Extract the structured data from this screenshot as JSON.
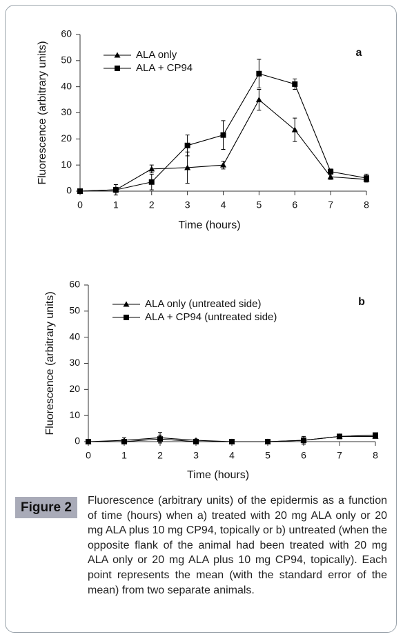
{
  "chart_data": [
    {
      "type": "line",
      "panel": "a",
      "x": [
        0,
        1,
        2,
        3,
        4,
        5,
        6,
        7,
        8
      ],
      "xlim": [
        0,
        8
      ],
      "xticks": [
        0,
        1,
        2,
        3,
        4,
        5,
        6,
        7,
        8
      ],
      "ylim": [
        0,
        60
      ],
      "yticks": [
        0,
        10,
        20,
        30,
        40,
        50,
        60
      ],
      "xlabel": "Time (hours)",
      "ylabel": "Fluorescence (arbitrary units)",
      "series": [
        {
          "name": "ALA only",
          "color": "#000000",
          "marker": "triangle",
          "values": [
            0,
            0.5,
            8.5,
            9,
            10,
            35,
            23.5,
            5.5,
            4.5
          ],
          "errors": [
            0,
            2,
            1.5,
            6,
            1.5,
            4,
            4.5,
            1,
            1
          ]
        },
        {
          "name": "ALA + CP94",
          "color": "#000000",
          "marker": "square",
          "values": [
            0,
            0.5,
            3.5,
            17.5,
            21.5,
            45,
            41,
            7.5,
            5
          ],
          "errors": [
            0,
            1,
            3,
            4,
            5.5,
            5.5,
            2,
            1,
            1.5
          ]
        }
      ]
    },
    {
      "type": "line",
      "panel": "b",
      "x": [
        0,
        1,
        2,
        3,
        4,
        5,
        6,
        7,
        8
      ],
      "xlim": [
        0,
        8
      ],
      "xticks": [
        0,
        1,
        2,
        3,
        4,
        5,
        6,
        7,
        8
      ],
      "ylim": [
        0,
        60
      ],
      "yticks": [
        0,
        10,
        20,
        30,
        40,
        50,
        60
      ],
      "xlabel": "Time (hours)",
      "ylabel": "Fluorescence (arbitrary units)",
      "series": [
        {
          "name": "ALA only (untreated side)",
          "color": "#000000",
          "marker": "triangle",
          "values": [
            0,
            0.5,
            1.5,
            0.5,
            0,
            0,
            0.5,
            2,
            2
          ],
          "errors": [
            0,
            1,
            2,
            0.5,
            0,
            0,
            1.5,
            0.5,
            0.5
          ]
        },
        {
          "name": "ALA + CP94 (untreated side)",
          "color": "#000000",
          "marker": "square",
          "values": [
            0,
            0,
            1,
            0,
            0,
            0,
            0.5,
            2,
            2.5
          ],
          "errors": [
            0,
            0.5,
            1.5,
            0.5,
            0,
            0,
            1,
            0.5,
            0.5
          ]
        }
      ]
    }
  ],
  "caption": {
    "label": "Figure 2",
    "text": "Fluorescence (arbitrary units) of the epidermis as a function of time (hours) when a) treated with 20 mg ALA only or 20 mg ALA plus 10 mg CP94, topically or b) untreated (when the opposite flank of the animal had been treated with 20 mg ALA only or 20 mg ALA plus 10 mg CP94, topically). Each point represents the mean (with the standard error of the mean) from two separate animals."
  }
}
